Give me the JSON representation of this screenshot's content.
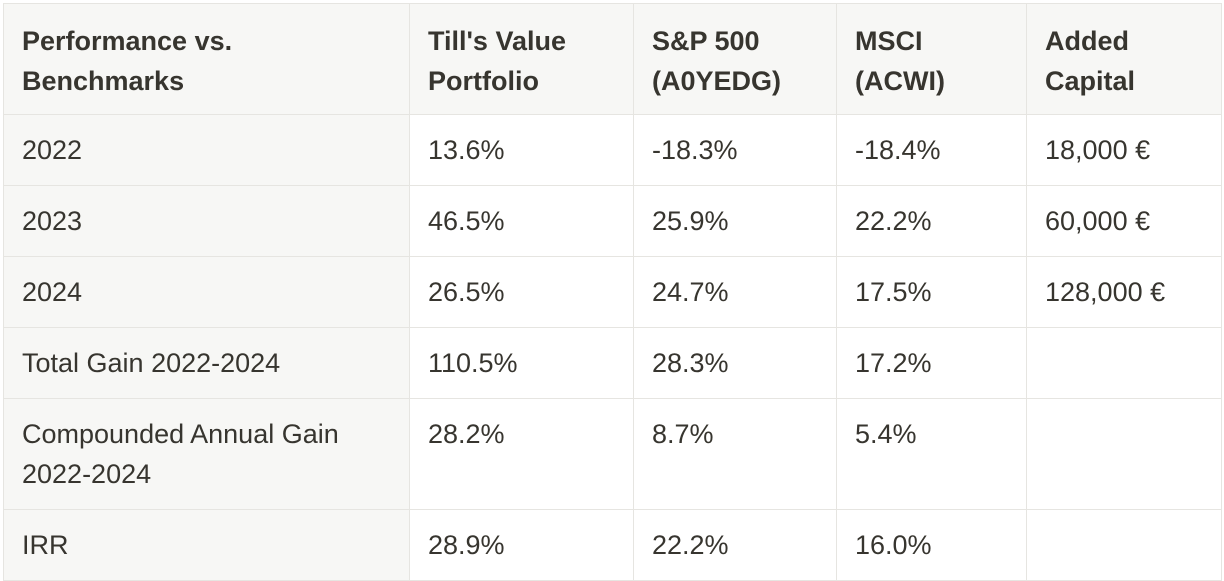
{
  "table": {
    "headers": [
      "Performance vs. Benchmarks",
      "Till's Value Portfolio",
      "S&P 500 (A0YEDG)",
      "MSCI (ACWI)",
      "Added Capital"
    ],
    "rows": [
      [
        "2022",
        "13.6%",
        "-18.3%",
        "-18.4%",
        "18,000 €"
      ],
      [
        "2023",
        "46.5%",
        "25.9%",
        "22.2%",
        "60,000 €"
      ],
      [
        "2024",
        "26.5%",
        "24.7%",
        "17.5%",
        "128,000 €"
      ],
      [
        "Total Gain 2022-2024",
        "110.5%",
        "28.3%",
        "17.2%",
        ""
      ],
      [
        "Compounded Annual Gain 2022-2024",
        "28.2%",
        "8.7%",
        "5.4%",
        ""
      ],
      [
        "IRR",
        "28.9%",
        "22.2%",
        "16.0%",
        ""
      ]
    ]
  }
}
